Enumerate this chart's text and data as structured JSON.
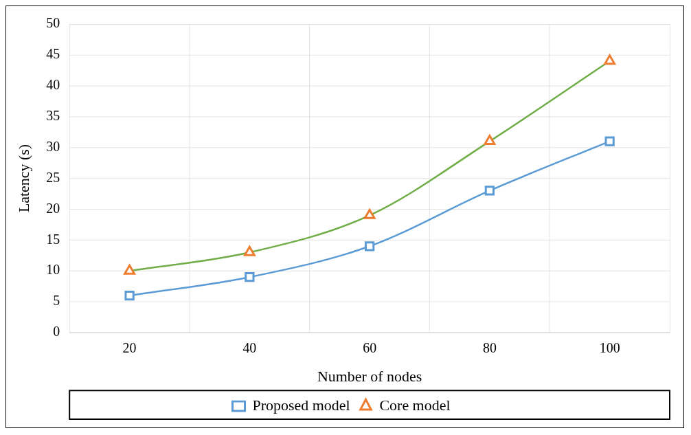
{
  "chart_data": {
    "type": "line",
    "xlabel": "Number of nodes",
    "ylabel": "Latency (s)",
    "categories": [
      "20",
      "40",
      "60",
      "80",
      "100"
    ],
    "series": [
      {
        "name": "Proposed model",
        "color": "#5b9bd5",
        "marker": "square",
        "values": [
          6,
          9,
          14,
          23,
          31
        ]
      },
      {
        "name": "Core model",
        "color": "#70ad47",
        "colors": [
          "#ed7d31",
          "#ed7d31",
          "#ed7d31",
          "#ed7d31",
          "#ed7d31"
        ],
        "marker": "triangle",
        "values": [
          10,
          13,
          19,
          31,
          44
        ]
      }
    ],
    "ylim": [
      0,
      50
    ],
    "yticks": [
      0,
      5,
      10,
      15,
      20,
      25,
      30,
      35,
      40,
      45,
      50
    ],
    "grid": true,
    "legend": "bottom"
  }
}
